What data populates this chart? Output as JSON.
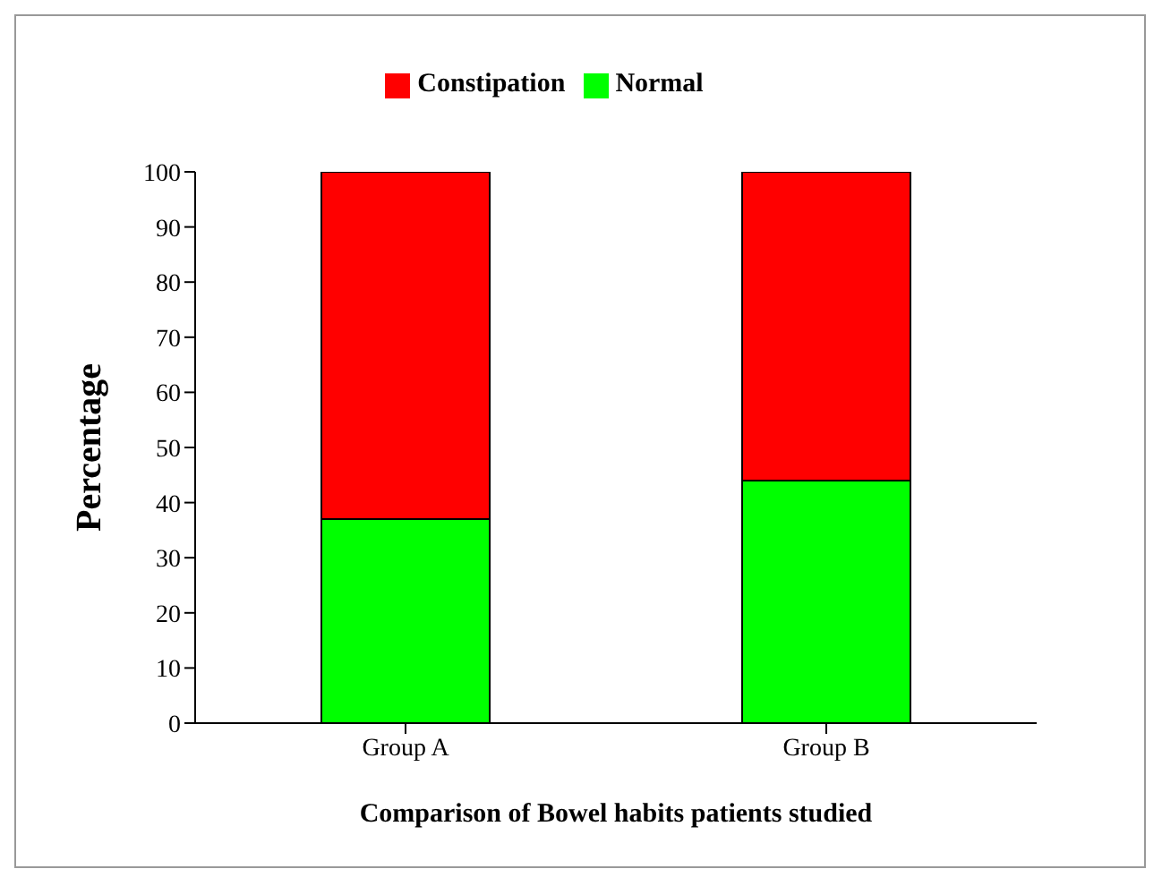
{
  "chart_data": {
    "type": "bar",
    "stacked": true,
    "xlabel": "Comparison of Bowel habits patients studied",
    "ylabel": "Percentage",
    "categories": [
      "Group A",
      "Group B"
    ],
    "series": [
      {
        "name": "Normal",
        "color": "#00ff00",
        "values": [
          37,
          44
        ]
      },
      {
        "name": "Constipation",
        "color": "#ff0000",
        "values": [
          63,
          56
        ]
      }
    ],
    "ylim": [
      0,
      100
    ],
    "yticks": [
      0,
      10,
      20,
      30,
      40,
      50,
      60,
      70,
      80,
      90,
      100
    ],
    "grid": false,
    "legend": "top"
  }
}
